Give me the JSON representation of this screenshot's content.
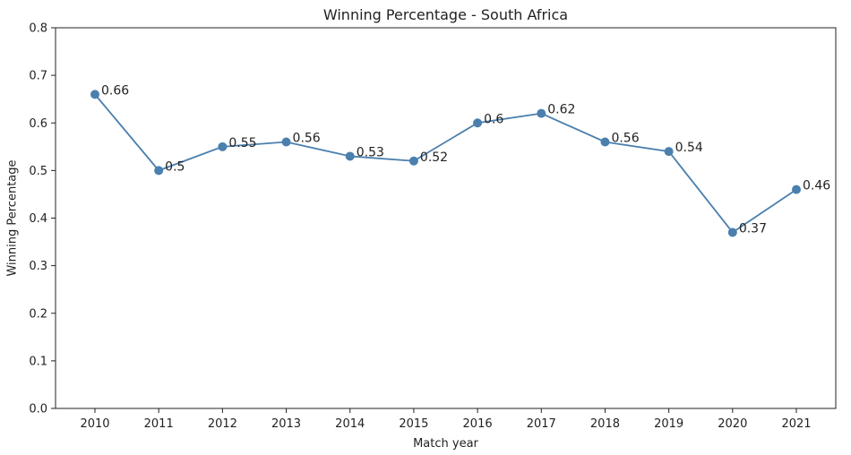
{
  "chart_data": {
    "type": "line",
    "title": "Winning Percentage - South Africa",
    "xlabel": "Match year",
    "ylabel": "Winning Percentage",
    "x": [
      "2010",
      "2011",
      "2012",
      "2013",
      "2014",
      "2015",
      "2016",
      "2017",
      "2018",
      "2019",
      "2020",
      "2021"
    ],
    "series": [
      {
        "values": [
          0.66,
          0.5,
          0.55,
          0.56,
          0.53,
          0.52,
          0.6,
          0.62,
          0.56,
          0.54,
          0.37,
          0.46
        ],
        "labels": [
          "0.66",
          "0.5",
          "0.55",
          "0.56",
          "0.53",
          "0.52",
          "0.6",
          "0.62",
          "0.56",
          "0.54",
          "0.37",
          "0.46"
        ],
        "color": "#4a7fae"
      }
    ],
    "ylim": [
      0.0,
      0.8
    ],
    "yticks": [
      "0.0",
      "0.1",
      "0.2",
      "0.3",
      "0.4",
      "0.5",
      "0.6",
      "0.7",
      "0.8"
    ],
    "grid": false,
    "legend": "none"
  }
}
